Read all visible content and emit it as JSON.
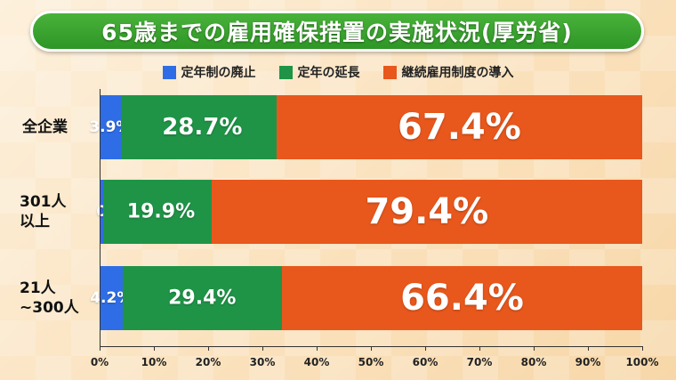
{
  "title": "65歳までの雇用確保措置の実施状況(厚労省)",
  "legend": [
    {
      "label": "定年制の廃止",
      "color": "#2f6de6"
    },
    {
      "label": "定年の延長",
      "color": "#1f9447"
    },
    {
      "label": "継続雇用制度の導入",
      "color": "#e8571c"
    }
  ],
  "chart_data": {
    "type": "bar",
    "orientation": "horizontal",
    "stacked": true,
    "categories": [
      "全企業",
      "301人\n以上",
      "21人\n~300人"
    ],
    "series": [
      {
        "name": "定年制の廃止",
        "values": [
          3.9,
          0.7,
          4.2
        ],
        "labels": [
          "3.9%",
          "0.7%",
          "4.2%"
        ],
        "color": "#2f6de6"
      },
      {
        "name": "定年の延長",
        "values": [
          28.7,
          19.9,
          29.4
        ],
        "labels": [
          "28.7%",
          "19.9%",
          "29.4%"
        ],
        "color": "#1f9447"
      },
      {
        "name": "継続雇用制度の導入",
        "values": [
          67.4,
          79.4,
          66.4
        ],
        "labels": [
          "67.4%",
          "79.4%",
          "66.4%"
        ],
        "color": "#e8571c"
      }
    ],
    "xlim": [
      0,
      100
    ],
    "x_ticks": [
      "0%",
      "10%",
      "20%",
      "30%",
      "40%",
      "50%",
      "60%",
      "70%",
      "80%",
      "90%",
      "100%"
    ],
    "grid": false,
    "legend_position": "top"
  }
}
